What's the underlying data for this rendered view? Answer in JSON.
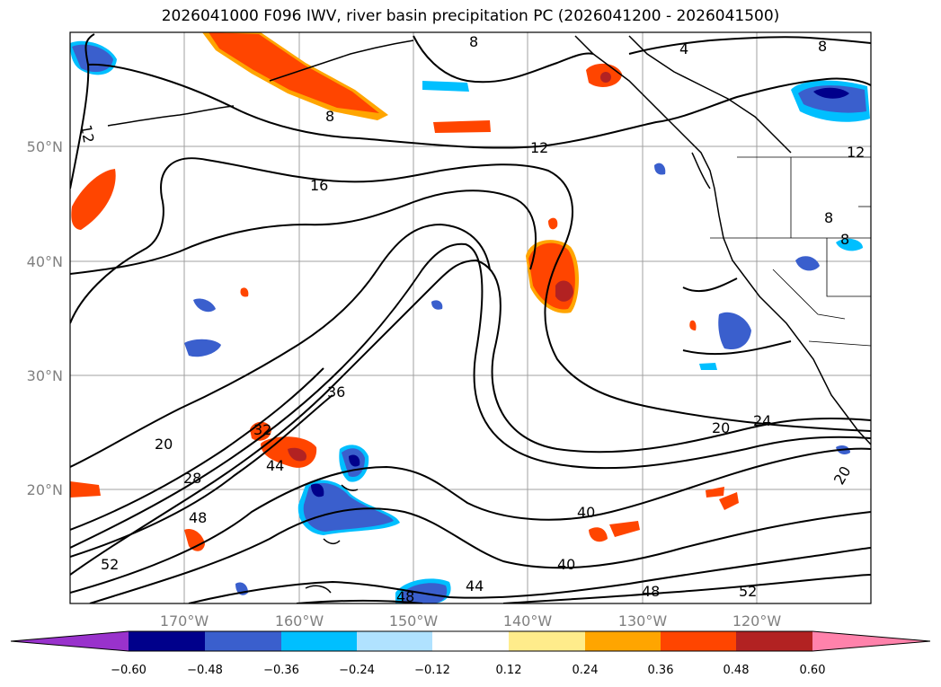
{
  "title": "2026041000 F096 IWV, river basin precipitation PC (2026041200 - 2026041500)",
  "lat_labels": [
    "50°N",
    "40°N",
    "30°N",
    "20°N"
  ],
  "lon_labels": [
    "170°W",
    "160°W",
    "150°W",
    "140°W",
    "130°W",
    "120°W"
  ],
  "contour_labels": [
    "12",
    "8",
    "4",
    "8",
    "12",
    "16",
    "12",
    "8",
    "8",
    "8",
    "36",
    "32",
    "44",
    "28",
    "20",
    "48",
    "52",
    "40",
    "40",
    "44",
    "48",
    "48",
    "52",
    "20",
    "24",
    "20"
  ],
  "colorbar": {
    "ticks": [
      "−0.60",
      "−0.48",
      "−0.36",
      "−0.24",
      "−0.12",
      "0.12",
      "0.24",
      "0.36",
      "0.48",
      "0.60"
    ],
    "colors": [
      "#9932cc",
      "#00008b",
      "#3a5fcd",
      "#00bfff",
      "#b0e2ff",
      "#ffffff",
      "#ffec8b",
      "#ffa500",
      "#ff4500",
      "#b22222",
      "#ff82ab"
    ]
  },
  "fill_colors": {
    "neg_light": "#00bfff",
    "neg_mid": "#3a5fcd",
    "neg_dark": "#00008b",
    "pos_light": "#ffa500",
    "pos_mid": "#ff4500",
    "pos_dark": "#b22222"
  }
}
